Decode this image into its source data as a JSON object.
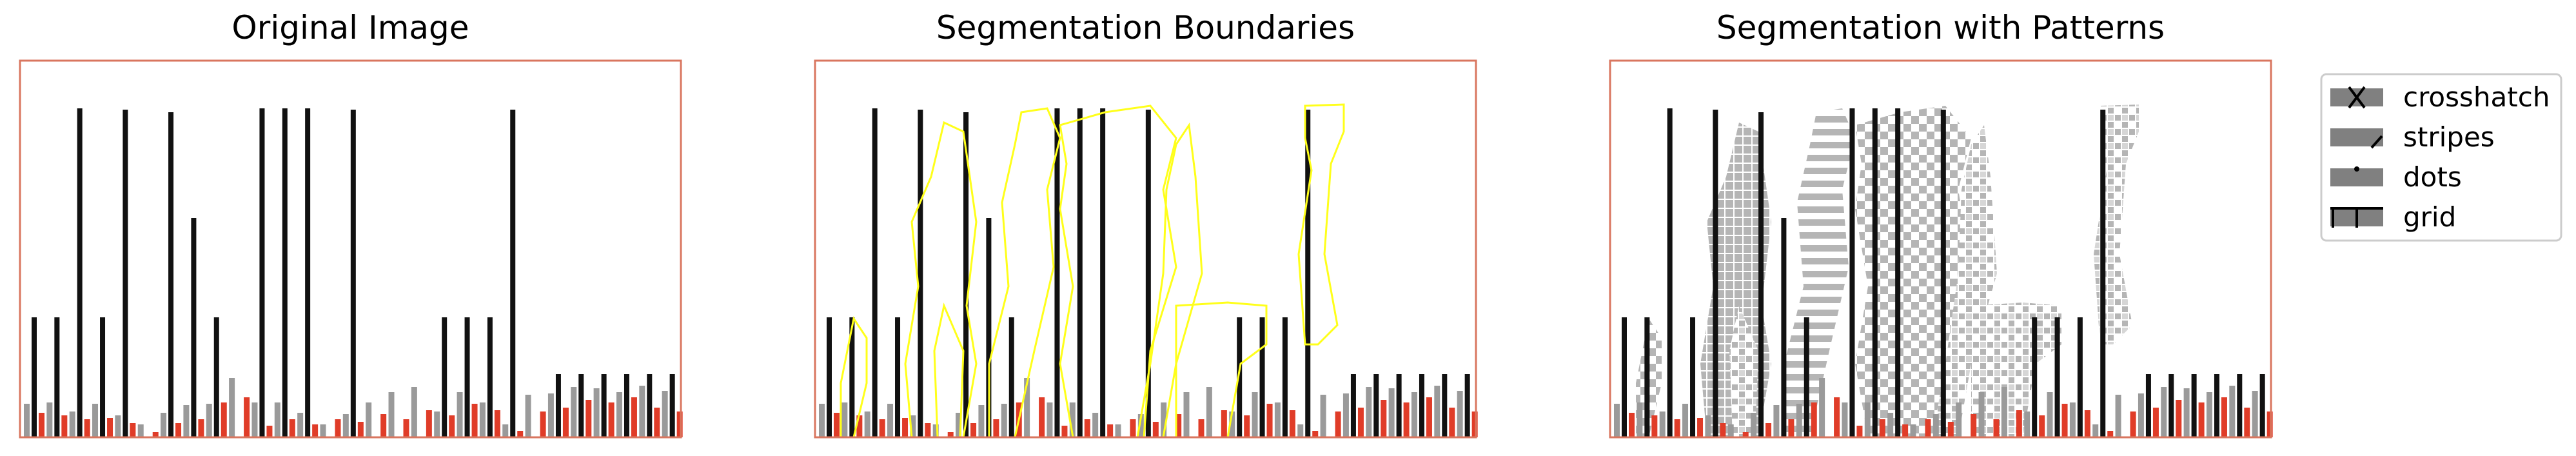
{
  "panels": [
    {
      "title": "Original Image",
      "style": "original"
    },
    {
      "title": "Segmentation Boundaries",
      "style": "boundaries"
    },
    {
      "title": "Segmentation with Patterns",
      "style": "patterns"
    }
  ],
  "legend": {
    "items": [
      {
        "label": "crosshatch",
        "icon": "crosshatch-icon"
      },
      {
        "label": "stripes",
        "icon": "stripes-icon"
      },
      {
        "label": "dots",
        "icon": "dots-icon"
      },
      {
        "label": "grid",
        "icon": "grid-icon"
      }
    ]
  },
  "colors": {
    "frame": "#d9765f",
    "tall_bar": "#111111",
    "gray_bar": "#9a9a9a",
    "red_bar": "#e03c28",
    "boundary": "#ffff1a",
    "pattern": "#b5b5b5"
  }
}
